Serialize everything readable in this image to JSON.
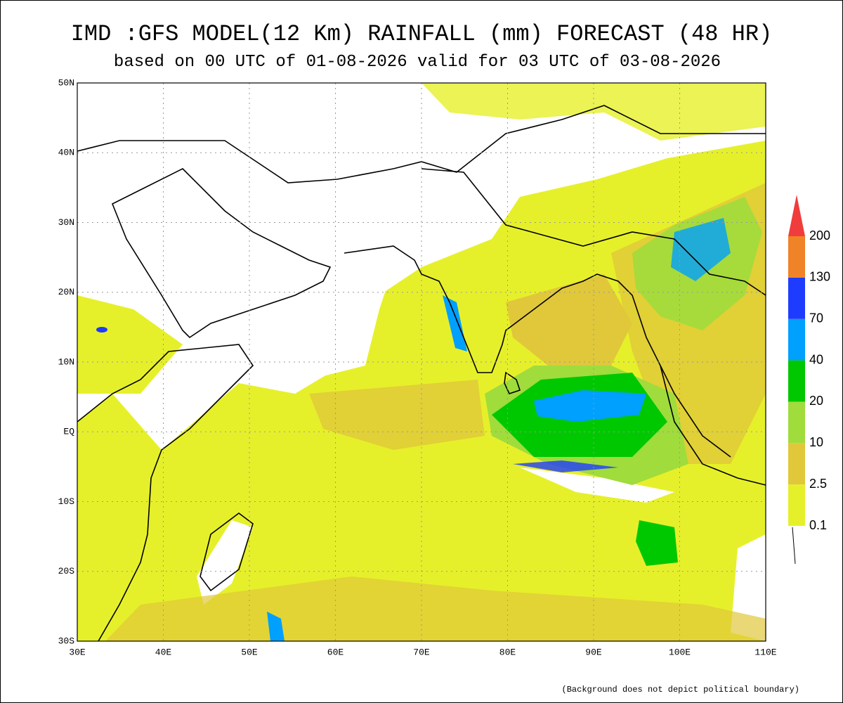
{
  "header": {
    "title": "IMD :GFS MODEL(12 Km) RAINFALL (mm) FORECAST (48 HR)",
    "subtitle": "based on 00 UTC of 01-08-2026 valid for 03 UTC of 03-08-2026"
  },
  "map": {
    "lat_labels": [
      "50N",
      "40N",
      "30N",
      "20N",
      "10N",
      "EQ",
      "10S",
      "20S",
      "30S"
    ],
    "lon_labels": [
      "30E",
      "40E",
      "50E",
      "60E",
      "70E",
      "80E",
      "90E",
      "100E",
      "110E"
    ]
  },
  "legend": {
    "labels": [
      "0.1",
      "2.5",
      "10",
      "20",
      "40",
      "70",
      "130",
      "200"
    ],
    "colors": [
      "#e6f02a",
      "#e0c83a",
      "#a0dc3c",
      "#00c800",
      "#00a0ff",
      "#1e3cff",
      "#f08228",
      "#f03c3c"
    ]
  },
  "footnote": "(Background does not depict political boundary)"
}
